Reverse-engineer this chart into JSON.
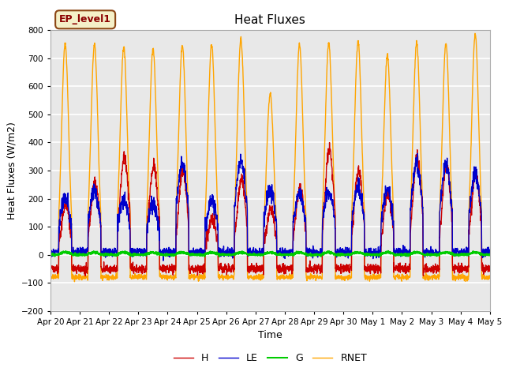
{
  "title": "Heat Fluxes",
  "ylabel": "Heat Fluxes (W/m2)",
  "xlabel": "Time",
  "ylim": [
    -200,
    800
  ],
  "yticks": [
    -200,
    -100,
    0,
    100,
    200,
    300,
    400,
    500,
    600,
    700,
    800
  ],
  "legend_label": "EP_level1",
  "series": [
    "H",
    "LE",
    "G",
    "RNET"
  ],
  "colors": {
    "H": "#cc0000",
    "LE": "#0000cc",
    "G": "#00cc00",
    "RNET": "#ffa500"
  },
  "line_width": 1.0,
  "bg_color": "#e8e8e8",
  "n_days": 15,
  "tick_labels": [
    "Apr 20",
    "Apr 21",
    "Apr 22",
    "Apr 23",
    "Apr 24",
    "Apr 25",
    "Apr 26",
    "Apr 27",
    "Apr 28",
    "Apr 29",
    "Apr 30",
    "May 1",
    "May 2",
    "May 3",
    "May 4",
    "May 5"
  ],
  "grid_color": "#ffffff",
  "seed": 42
}
